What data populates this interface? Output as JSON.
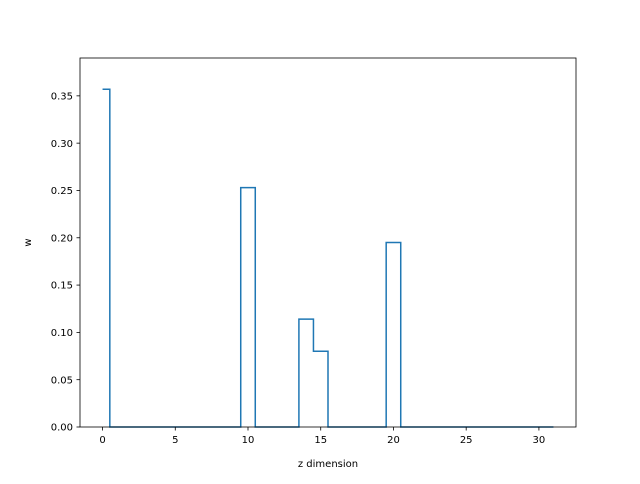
{
  "chart_data": {
    "type": "line",
    "drawstyle": "steps-mid",
    "xlabel": "z dimension",
    "ylabel": "w",
    "xlim": [
      -1.55,
      32.55
    ],
    "ylim": [
      0.0,
      0.39
    ],
    "xticks": [
      0,
      5,
      10,
      15,
      20,
      25,
      30
    ],
    "xtick_labels": [
      "0",
      "5",
      "10",
      "15",
      "20",
      "25",
      "30"
    ],
    "yticks": [
      0.0,
      0.05,
      0.1,
      0.15,
      0.2,
      0.25,
      0.3,
      0.35
    ],
    "ytick_labels": [
      "0.00",
      "0.05",
      "0.10",
      "0.15",
      "0.20",
      "0.25",
      "0.30",
      "0.35"
    ],
    "grid": false,
    "legend": false,
    "series": [
      {
        "color": "#1f77b4",
        "x": [
          0,
          1,
          2,
          3,
          4,
          5,
          6,
          7,
          8,
          9,
          10,
          11,
          12,
          13,
          14,
          15,
          16,
          17,
          18,
          19,
          20,
          21,
          22,
          23,
          24,
          25,
          26,
          27,
          28,
          29,
          30,
          31
        ],
        "y": [
          0.357,
          0,
          0,
          0,
          0,
          0,
          0,
          0,
          0,
          0,
          0.253,
          0,
          0,
          0,
          0.114,
          0.08,
          0,
          0,
          0,
          0,
          0.195,
          0,
          0,
          0,
          0,
          0,
          0,
          0,
          0,
          0,
          0,
          0
        ]
      }
    ]
  }
}
